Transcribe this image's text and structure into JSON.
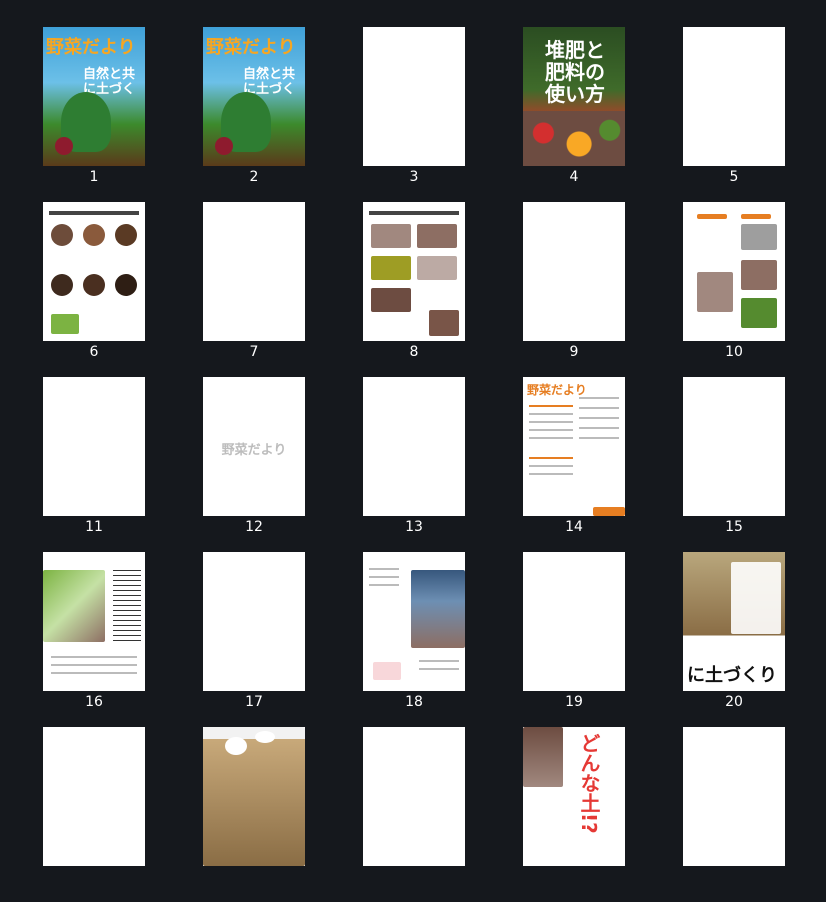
{
  "pages": [
    {
      "number": "1",
      "kind": "magazine-cover",
      "title": "野菜だより",
      "subtitle": "自然と共に土づくり"
    },
    {
      "number": "2",
      "kind": "magazine-cover",
      "title": "野菜だより",
      "subtitle": "自然と共に土づくり"
    },
    {
      "number": "3",
      "kind": "blank"
    },
    {
      "number": "4",
      "kind": "book-cover",
      "title": "堆肥と肥料の使い方"
    },
    {
      "number": "5",
      "kind": "blank"
    },
    {
      "number": "6",
      "kind": "article"
    },
    {
      "number": "7",
      "kind": "blank"
    },
    {
      "number": "8",
      "kind": "article"
    },
    {
      "number": "9",
      "kind": "blank"
    },
    {
      "number": "10",
      "kind": "article"
    },
    {
      "number": "11",
      "kind": "blank"
    },
    {
      "number": "12",
      "kind": "watermark",
      "title": "野菜だより"
    },
    {
      "number": "13",
      "kind": "blank"
    },
    {
      "number": "14",
      "kind": "contents",
      "title": "野菜だより"
    },
    {
      "number": "15",
      "kind": "blank"
    },
    {
      "number": "16",
      "kind": "article-vertical"
    },
    {
      "number": "17",
      "kind": "blank"
    },
    {
      "number": "18",
      "kind": "article-photo"
    },
    {
      "number": "19",
      "kind": "blank"
    },
    {
      "number": "20",
      "kind": "feature-cover",
      "title": "に土づくり"
    },
    {
      "number": "",
      "kind": "blank"
    },
    {
      "number": "",
      "kind": "article-soil"
    },
    {
      "number": "",
      "kind": "blank"
    },
    {
      "number": "",
      "kind": "feature-cover-red",
      "title": "どんな土!?"
    },
    {
      "number": "",
      "kind": "blank"
    }
  ]
}
